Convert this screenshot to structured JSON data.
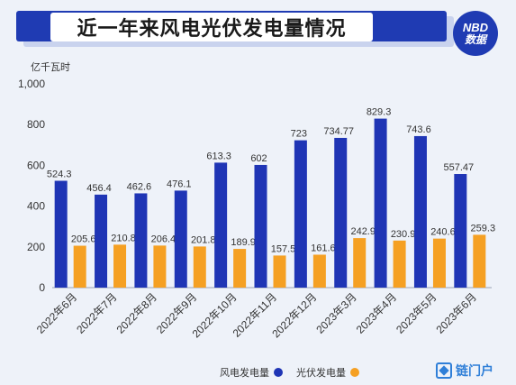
{
  "header": {
    "title": "近一年来风电光伏发电量情况",
    "logo_line1": "NBD",
    "logo_line2": "数据"
  },
  "unit_label": "亿千瓦时",
  "legend": {
    "wind_label": "风电发电量",
    "solar_label": "光伏发电量"
  },
  "brand": {
    "name": "链门户"
  },
  "colors": {
    "wind": "#1f35b5",
    "solar": "#f5a023",
    "title_bar": "#1f3bb3",
    "background": "#eef2f9"
  },
  "chart_data": {
    "type": "bar",
    "title": "近一年来风电光伏发电量情况",
    "ylabel": "亿千瓦时",
    "ylim": [
      0,
      1000
    ],
    "yticks": [
      "0",
      "200",
      "400",
      "600",
      "800",
      "1,000"
    ],
    "categories": [
      "2022年6月",
      "2022年7月",
      "2022年8月",
      "2022年9月",
      "2022年10月",
      "2022年11月",
      "2022年12月",
      "2023年3月",
      "2023年4月",
      "2023年5月",
      "2023年6月"
    ],
    "series": [
      {
        "name": "风电发电量",
        "values": [
          524.3,
          456.4,
          462.6,
          476.1,
          613.3,
          602,
          723,
          734.77,
          829.3,
          743.6,
          557.47
        ],
        "labels": [
          "524.3",
          "456.4",
          "462.6",
          "476.1",
          "613.3",
          "602",
          "723",
          "734.77",
          "829.3",
          "743.6",
          "557.47"
        ]
      },
      {
        "name": "光伏发电量",
        "values": [
          205.6,
          210.8,
          206.4,
          201.8,
          189.9,
          157.5,
          161.6,
          242.9,
          230.9,
          240.6,
          259.3
        ],
        "labels": [
          "205.6",
          "210.8",
          "206.4",
          "201.8",
          "189.9",
          "157.5",
          "161.6",
          "242.9",
          "230.9",
          "240.6",
          "259.3"
        ]
      }
    ]
  }
}
